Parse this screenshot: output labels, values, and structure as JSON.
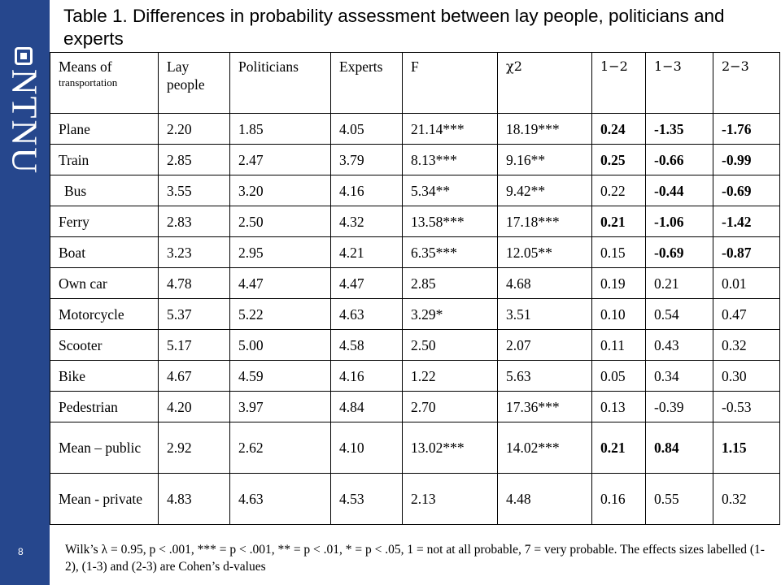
{
  "slide": {
    "number": "8",
    "logo_text": "NTNU",
    "title": "Table 1. Differences in probability assessment between lay people, politicians and experts"
  },
  "table": {
    "headers": {
      "col1_line1": "Means of",
      "col1_line2": "transportation",
      "lay": "Lay people",
      "politicians": "Politicians",
      "experts": "Experts",
      "f": "F",
      "chi": "χ2",
      "d12": "1−2",
      "d13": "1−3",
      "d23": "2−3"
    },
    "rows": [
      {
        "name": "Plane",
        "lay": "2.20",
        "pol": "1.85",
        "exp": "4.05",
        "f": "21.14***",
        "chi": "18.19***",
        "d12": "0.24",
        "d13": "-1.35",
        "d23": "-1.76"
      },
      {
        "name": "Train",
        "lay": "2.85",
        "pol": "2.47",
        "exp": "3.79",
        "f": "8.13***",
        "chi": "9.16**",
        "d12": "0.25",
        "d13": "-0.66",
        "d23": "-0.99"
      },
      {
        "name": "Bus",
        "lay": "3.55",
        "pol": "3.20",
        "exp": "4.16",
        "f": "5.34**",
        "chi": "9.42**",
        "d12": "0.22",
        "d13": "-0.44",
        "d23": "-0.69"
      },
      {
        "name": "Ferry",
        "lay": "2.83",
        "pol": "2.50",
        "exp": "4.32",
        "f": "13.58***",
        "chi": "17.18***",
        "d12": "0.21",
        "d13": "-1.06",
        "d23": "-1.42"
      },
      {
        "name": "Boat",
        "lay": "3.23",
        "pol": "2.95",
        "exp": "4.21",
        "f": "6.35***",
        "chi": "12.05**",
        "d12": "0.15",
        "d13": "-0.69",
        "d23": "-0.87"
      },
      {
        "name": "Own car",
        "lay": "4.78",
        "pol": "4.47",
        "exp": "4.47",
        "f": "2.85",
        "chi": "4.68",
        "d12": "0.19",
        "d13": "0.21",
        "d23": "0.01"
      },
      {
        "name": "Motorcycle",
        "lay": "5.37",
        "pol": "5.22",
        "exp": "4.63",
        "f": "3.29*",
        "chi": "3.51",
        "d12": "0.10",
        "d13": "0.54",
        "d23": "0.47"
      },
      {
        "name": "Scooter",
        "lay": "5.17",
        "pol": "5.00",
        "exp": "4.58",
        "f": "2.50",
        "chi": "2.07",
        "d12": "0.11",
        "d13": "0.43",
        "d23": "0.32"
      },
      {
        "name": "Bike",
        "lay": "4.67",
        "pol": "4.59",
        "exp": "4.16",
        "f": "1.22",
        "chi": "5.63",
        "d12": "0.05",
        "d13": "0.34",
        "d23": "0.30"
      },
      {
        "name": "Pedestrian",
        "lay": "4.20",
        "pol": "3.97",
        "exp": "4.84",
        "f": "2.70",
        "chi": "17.36***",
        "d12": "0.13",
        "d13": "-0.39",
        "d23": "-0.53"
      },
      {
        "name": "Mean – public",
        "lay": "2.92",
        "pol": "2.62",
        "exp": "4.10",
        "f": "13.02***",
        "chi": "14.02***",
        "d12": "0.21",
        "d13": "0.84",
        "d23": "1.15"
      },
      {
        "name": "Mean - private",
        "lay": "4.83",
        "pol": "4.63",
        "exp": "4.53",
        "f": "2.13",
        "chi": "4.48",
        "d12": "0.16",
        "d13": "0.55",
        "d23": "0.32"
      }
    ]
  },
  "footnote": "Wilk’s λ = 0.95, p < .001, *** = p < .001, ** = p < .01, * = p < .05, 1 = not at all probable, 7 = very probable. The effects sizes labelled (1-2), (1-3) and (2-3) are Cohen’s d-values",
  "colors": {
    "sidebar": "#26478d",
    "text": "#000000",
    "background": "#ffffff"
  }
}
